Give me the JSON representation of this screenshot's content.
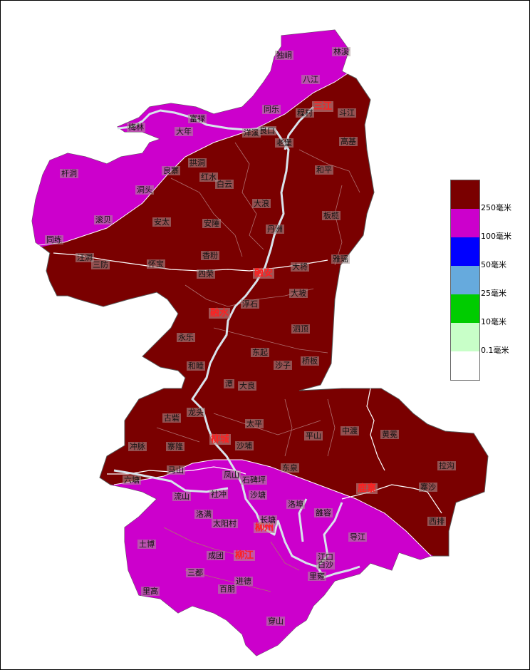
{
  "legend": {
    "colors": [
      "#7a0000",
      "#cc00cc",
      "#0000ff",
      "#66aadd",
      "#00cc00",
      "#c8ffc8",
      "#ffffff"
    ],
    "labels": [
      "250毫米",
      "100毫米",
      "50毫米",
      "25毫米",
      "10毫米",
      "0.1毫米"
    ]
  },
  "cities": {
    "sanjiang": "三江",
    "rongan": "融安",
    "rongshui": "融水",
    "liucheng": "柳城",
    "luzhai": "鹿寨",
    "liuzhou": "柳州",
    "liujiang": "柳江"
  },
  "towns": {
    "dudong": "独峒",
    "linxi": "林溪",
    "bajiang": "八江",
    "tongle": "同乐",
    "chengcun": "程村",
    "doujiang": "斗江",
    "meilin": "梅林",
    "fulu": "富禄",
    "danian": "大年",
    "yangxi": "洋溪",
    "liangkou": "良口",
    "laobao": "老堡",
    "gaoji": "高基",
    "qiandong": "杆洞",
    "gongdong": "拱洞",
    "liangzhai": "良寨",
    "hongshui": "红水",
    "baiyun": "白云",
    "hongwen": "洞头",
    "heping": "和平",
    "gunbei": "滚贝",
    "anchui": "安太",
    "anlong": "安陲",
    "dalang": "大浪",
    "banlan": "板榄",
    "danzhou": "丹洲",
    "tonglian": "同练",
    "wangdong": "汪洞",
    "sanfang": "三防",
    "huaibao": "怀宝",
    "xiangfen": "香粉",
    "sirong": "四荣",
    "dajiang": "大将",
    "yayao": "雅瑶",
    "dapo": "大坡",
    "fushi": "浮石",
    "yongle": "永乐",
    "sidun": "泗顶",
    "dongqi": "东起",
    "shazi": "沙子",
    "qiaoban": "桥板",
    "hemu": "和睦",
    "tanpu": "潭",
    "daliang": "大良",
    "longtou": "龙头",
    "guyan": "古砦",
    "taiping": "太平",
    "pingshan": "平山",
    "zhongdu": "中渡",
    "huangmian": "黄冕",
    "zhongmai": "冲脉",
    "zhailong": "寨隆",
    "shapu": "沙埔",
    "lagou": "拉沟",
    "mashan": "马山",
    "dongquan": "东泉",
    "liutang": "六塘",
    "fengshan": "凤山",
    "shibeiping": "石碑坪",
    "zhaisha": "寨沙",
    "liushan": "流山",
    "shechong": "社冲",
    "shatang": "沙塘",
    "luobu": "洛埠",
    "yongrong": "雒容",
    "xipai": "西排",
    "luoman": "洛满",
    "taiyangcun": "太阳村",
    "changtang": "长塘",
    "daojiang": "导江",
    "tubo": "土博",
    "chengtuan": "成团",
    "jiangkou": "江口",
    "baisha": "白沙",
    "sandu": "三都",
    "liyong": "里雍",
    "ligao": "里高",
    "baipeng": "百朋",
    "jinde": "进德",
    "chuanshan": "穿山"
  }
}
